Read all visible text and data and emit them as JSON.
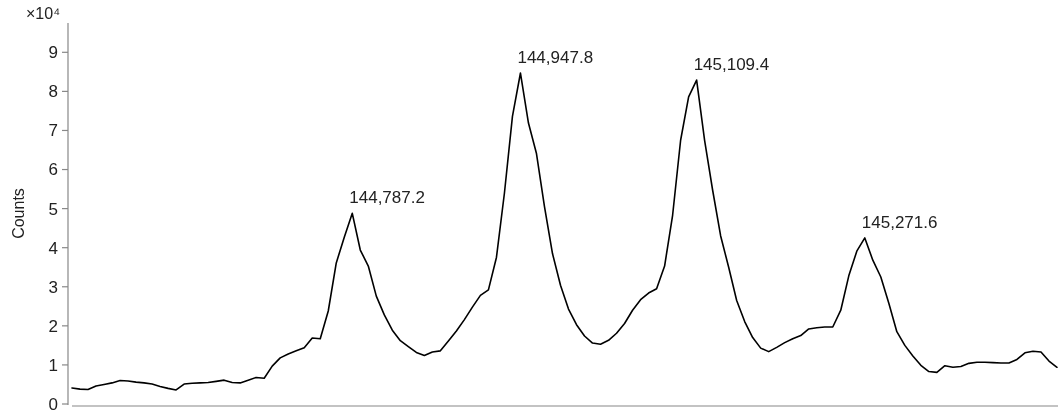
{
  "chart_data": {
    "type": "line",
    "ylabel": "Counts",
    "annotations": [
      "×10⁴",
      "144,787.2",
      "144,947.8",
      "145,109.4",
      "145,271.6"
    ],
    "categories": [
      null,
      null,
      null,
      null,
      null,
      null,
      null,
      null,
      null,
      null,
      null,
      null,
      null,
      null,
      null,
      null,
      null,
      null,
      null,
      null,
      null,
      null,
      null,
      null,
      null,
      null,
      null,
      null,
      null,
      null,
      null,
      null,
      null,
      null,
      null,
      null,
      null,
      null,
      null,
      null,
      null,
      null,
      null,
      null,
      null,
      null,
      null,
      null,
      null,
      null,
      null,
      null,
      null,
      null,
      null,
      null,
      null,
      null,
      null,
      null,
      null,
      null,
      null,
      null,
      null,
      null,
      null,
      null,
      null,
      null,
      null,
      null,
      null,
      null,
      null,
      null,
      null,
      null,
      null,
      null,
      null,
      null,
      null,
      null,
      null,
      null,
      null,
      null,
      null,
      null,
      null,
      null,
      null,
      null,
      null,
      null,
      null,
      null,
      null,
      null,
      null,
      null,
      null,
      null,
      null,
      null,
      null,
      null,
      null,
      null,
      null,
      null,
      null,
      null,
      null,
      null,
      null,
      null,
      null,
      null,
      null,
      null,
      null,
      null
    ],
    "ylim": [
      0,
      9.75
    ],
    "yticks": [
      0,
      1,
      2,
      3,
      4,
      5,
      6,
      7,
      8,
      9
    ],
    "tick_labels": "y",
    "grid": false,
    "series": [
      {
        "color": "#000000",
        "values": [
          0.41,
          0.38,
          0.37,
          0.46,
          0.5,
          0.54,
          0.6,
          0.59,
          0.56,
          0.54,
          0.51,
          0.45,
          0.4,
          0.36,
          0.51,
          0.53,
          0.54,
          0.55,
          0.58,
          0.61,
          0.55,
          0.54,
          0.61,
          0.68,
          0.66,
          0.97,
          1.18,
          1.28,
          1.36,
          1.44,
          1.69,
          1.67,
          2.38,
          3.61,
          4.27,
          4.88,
          3.94,
          3.53,
          2.76,
          2.28,
          1.89,
          1.62,
          1.47,
          1.32,
          1.24,
          1.33,
          1.36,
          1.61,
          1.87,
          2.16,
          2.48,
          2.78,
          2.92,
          3.75,
          5.4,
          7.36,
          8.47,
          7.19,
          6.41,
          5.05,
          3.85,
          3.04,
          2.43,
          2.03,
          1.74,
          1.56,
          1.53,
          1.63,
          1.81,
          2.06,
          2.4,
          2.67,
          2.84,
          2.95,
          3.53,
          4.83,
          6.75,
          7.86,
          8.29,
          6.74,
          5.47,
          4.3,
          3.5,
          2.65,
          2.11,
          1.7,
          1.43,
          1.34,
          1.45,
          1.57,
          1.67,
          1.75,
          1.92,
          1.95,
          1.97,
          1.97,
          2.4,
          3.28,
          3.91,
          4.25,
          3.68,
          3.25,
          2.58,
          1.85,
          1.5,
          1.23,
          0.99,
          0.83,
          0.81,
          0.98,
          0.94,
          0.96,
          1.04,
          1.07,
          1.07,
          1.06,
          1.05,
          1.05,
          1.14,
          1.31,
          1.35,
          1.33,
          1.1,
          0.94
        ]
      }
    ]
  }
}
